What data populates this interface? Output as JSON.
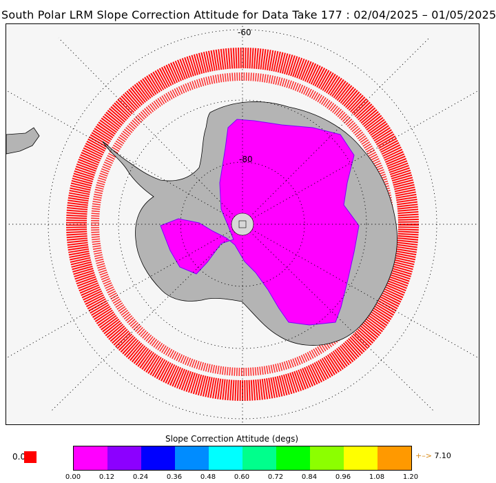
{
  "title": "South Polar LRM Slope Correction Attitude for Data Take 177 : 02/04/2025 – 01/05/2025",
  "map": {
    "projection": "south-polar-stereographic",
    "latitude_labels": [
      "-60",
      "-80"
    ],
    "colors": {
      "ocean": "#f6f6f6",
      "land": "#b4b4b4",
      "track": "#ff0000",
      "coastline": "#000000",
      "graticule": "#000000"
    }
  },
  "colorbar": {
    "title": "Slope Correction Attitude (degs)",
    "colors": [
      "#ff00ff",
      "#8c00ff",
      "#0000ff",
      "#008cff",
      "#00ffff",
      "#00ff8c",
      "#00ff00",
      "#8cff00",
      "#ffff00",
      "#ff9900"
    ],
    "ticks": [
      "0.00",
      "0.12",
      "0.24",
      "0.36",
      "0.48",
      "0.60",
      "0.72",
      "0.84",
      "0.96",
      "1.08",
      "1.20"
    ],
    "zero_label": "0.0",
    "zero_color": "#ff0000",
    "overflow_arrow": "+–>",
    "overflow_value": "7.10"
  }
}
